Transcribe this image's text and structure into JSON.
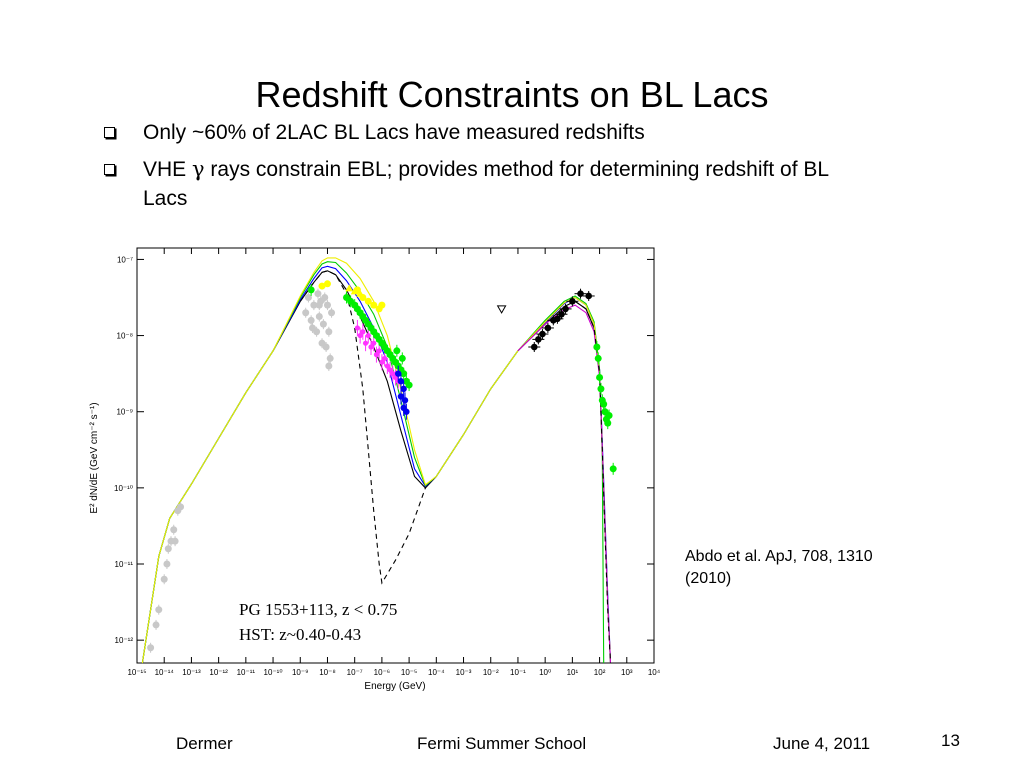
{
  "slide": {
    "title": "Redshift Constraints on BL Lacs",
    "bullets": [
      {
        "text": "Only ~60% of 2LAC BL Lacs have measured redshifts"
      },
      {
        "before": "VHE ",
        "symbol": "γ",
        "after": " rays constrain EBL; provides method for determining redshift of BL Lacs"
      }
    ],
    "caption_lines": [
      "Abdo et al. ApJ, 708, 1310",
      "(2010)"
    ],
    "footer": {
      "author": "Dermer",
      "event": "Fermi Summer School",
      "date": "June 4, 2011",
      "page": "13"
    }
  },
  "chart_data": {
    "type": "scatter",
    "xlabel": "Energy (GeV)",
    "ylabel": "E² dN/dE (GeV cm⁻² s⁻¹)",
    "x_log_range": [
      -15,
      4
    ],
    "y_log_range": [
      -12.3,
      -6.85
    ],
    "x_tick_labels": [
      "10⁻¹⁵",
      "10⁻¹⁴",
      "10⁻¹³",
      "10⁻¹²",
      "10⁻¹¹",
      "10⁻¹⁰",
      "10⁻⁹",
      "10⁻⁸",
      "10⁻⁷",
      "10⁻⁶",
      "10⁻⁵",
      "10⁻⁴",
      "10⁻³",
      "10⁻²",
      "10⁻¹",
      "10⁰",
      "10¹",
      "10²",
      "10³",
      "10⁴"
    ],
    "y_ticks": [
      {
        "exp": -7,
        "label": "10⁻⁷"
      },
      {
        "exp": -8,
        "label": "10⁻⁸"
      },
      {
        "exp": -9,
        "label": "10⁻⁹"
      },
      {
        "exp": -10,
        "label": "10⁻¹⁰"
      },
      {
        "exp": -11,
        "label": "10⁻¹¹"
      },
      {
        "exp": -12,
        "label": "10⁻¹²"
      }
    ],
    "annotation_lines": [
      "PG 1553+113, z < 0.75",
      "HST: z~0.40-0.43"
    ],
    "model_curves": [
      {
        "color": "#000000",
        "dash": false,
        "points": [
          [
            -14.8,
            -12.3
          ],
          [
            -14.2,
            -10.9
          ],
          [
            -13.8,
            -10.4
          ],
          [
            -13.0,
            -9.95
          ],
          [
            -12.0,
            -9.35
          ],
          [
            -11.0,
            -8.75
          ],
          [
            -10.0,
            -8.2
          ],
          [
            -9.0,
            -7.55
          ],
          [
            -8.5,
            -7.3
          ],
          [
            -8.2,
            -7.17
          ],
          [
            -8.0,
            -7.15
          ],
          [
            -7.7,
            -7.2
          ],
          [
            -7.3,
            -7.4
          ],
          [
            -6.8,
            -7.75
          ],
          [
            -6.3,
            -8.15
          ],
          [
            -5.8,
            -8.6
          ],
          [
            -5.3,
            -9.25
          ],
          [
            -4.8,
            -9.85
          ],
          [
            -4.4,
            -10.0
          ],
          [
            -4.0,
            -9.85
          ],
          [
            -3.0,
            -9.3
          ],
          [
            -2.0,
            -8.7
          ],
          [
            -1.0,
            -8.2
          ],
          [
            0.0,
            -7.85
          ],
          [
            0.7,
            -7.62
          ],
          [
            1.1,
            -7.55
          ],
          [
            1.5,
            -7.65
          ],
          [
            1.8,
            -7.9
          ],
          [
            2.0,
            -8.5
          ],
          [
            2.1,
            -9.5
          ],
          [
            2.2,
            -10.5
          ],
          [
            2.3,
            -11.5
          ],
          [
            2.4,
            -12.3
          ]
        ]
      },
      {
        "color": "#0000ff",
        "dash": false,
        "points": [
          [
            -14.8,
            -12.3
          ],
          [
            -14.2,
            -10.9
          ],
          [
            -13.8,
            -10.4
          ],
          [
            -13.0,
            -9.95
          ],
          [
            -12.0,
            -9.35
          ],
          [
            -11.0,
            -8.75
          ],
          [
            -10.0,
            -8.2
          ],
          [
            -9.0,
            -7.53
          ],
          [
            -8.5,
            -7.25
          ],
          [
            -8.2,
            -7.11
          ],
          [
            -8.0,
            -7.09
          ],
          [
            -7.7,
            -7.12
          ],
          [
            -7.3,
            -7.28
          ],
          [
            -6.8,
            -7.55
          ],
          [
            -6.3,
            -7.9
          ],
          [
            -5.8,
            -8.35
          ],
          [
            -5.3,
            -9.05
          ],
          [
            -4.8,
            -9.75
          ],
          [
            -4.4,
            -9.98
          ],
          [
            -4.0,
            -9.85
          ],
          [
            -3.0,
            -9.3
          ],
          [
            -2.0,
            -8.7
          ],
          [
            -1.0,
            -8.2
          ],
          [
            0.0,
            -7.83
          ],
          [
            0.7,
            -7.58
          ],
          [
            1.1,
            -7.5
          ],
          [
            1.5,
            -7.6
          ],
          [
            1.8,
            -7.85
          ],
          [
            2.0,
            -8.45
          ],
          [
            2.1,
            -9.4
          ],
          [
            2.2,
            -10.4
          ],
          [
            2.3,
            -11.4
          ],
          [
            2.4,
            -12.3
          ]
        ]
      },
      {
        "color": "#00cc00",
        "dash": false,
        "points": [
          [
            -14.8,
            -12.3
          ],
          [
            -14.2,
            -10.9
          ],
          [
            -13.8,
            -10.4
          ],
          [
            -13.0,
            -9.95
          ],
          [
            -12.0,
            -9.35
          ],
          [
            -11.0,
            -8.75
          ],
          [
            -10.0,
            -8.2
          ],
          [
            -9.0,
            -7.5
          ],
          [
            -8.5,
            -7.2
          ],
          [
            -8.2,
            -7.06
          ],
          [
            -8.0,
            -7.03
          ],
          [
            -7.7,
            -7.04
          ],
          [
            -7.3,
            -7.18
          ],
          [
            -6.8,
            -7.42
          ],
          [
            -6.3,
            -7.72
          ],
          [
            -5.8,
            -8.15
          ],
          [
            -5.3,
            -8.85
          ],
          [
            -4.8,
            -9.6
          ],
          [
            -4.4,
            -9.97
          ],
          [
            -4.0,
            -9.85
          ],
          [
            -3.0,
            -9.3
          ],
          [
            -2.0,
            -8.7
          ],
          [
            -1.0,
            -8.2
          ],
          [
            0.0,
            -7.8
          ],
          [
            0.7,
            -7.55
          ],
          [
            1.1,
            -7.48
          ],
          [
            1.5,
            -7.58
          ],
          [
            1.8,
            -7.82
          ],
          [
            2.0,
            -8.45
          ],
          [
            2.1,
            -9.6
          ],
          [
            2.15,
            -12.3
          ]
        ]
      },
      {
        "color": "#eeee00",
        "dash": false,
        "points": [
          [
            -14.8,
            -12.3
          ],
          [
            -14.2,
            -10.9
          ],
          [
            -13.8,
            -10.4
          ],
          [
            -13.0,
            -9.95
          ],
          [
            -12.0,
            -9.35
          ],
          [
            -11.0,
            -8.75
          ],
          [
            -10.0,
            -8.2
          ],
          [
            -9.0,
            -7.48
          ],
          [
            -8.5,
            -7.17
          ],
          [
            -8.2,
            -7.02
          ],
          [
            -8.0,
            -6.98
          ],
          [
            -7.7,
            -6.98
          ],
          [
            -7.3,
            -7.05
          ],
          [
            -6.8,
            -7.25
          ],
          [
            -6.3,
            -7.55
          ],
          [
            -5.8,
            -8.0
          ],
          [
            -5.3,
            -8.7
          ],
          [
            -4.8,
            -9.5
          ],
          [
            -4.4,
            -9.96
          ],
          [
            -4.0,
            -9.85
          ],
          [
            -3.0,
            -9.3
          ],
          [
            -2.0,
            -8.7
          ],
          [
            -1.0,
            -8.2
          ],
          [
            0.0,
            -7.82
          ],
          [
            0.7,
            -7.57
          ],
          [
            1.1,
            -7.5
          ],
          [
            1.5,
            -7.6
          ],
          [
            1.8,
            -7.85
          ],
          [
            2.0,
            -8.5
          ],
          [
            2.1,
            -9.5
          ],
          [
            2.2,
            -10.5
          ],
          [
            2.3,
            -11.5
          ],
          [
            2.4,
            -12.3
          ]
        ]
      },
      {
        "color": "#cc00cc",
        "dash": false,
        "points": [
          [
            -1.0,
            -8.2
          ],
          [
            0.0,
            -7.85
          ],
          [
            0.7,
            -7.66
          ],
          [
            1.1,
            -7.6
          ],
          [
            1.5,
            -7.7
          ],
          [
            1.8,
            -7.95
          ],
          [
            2.0,
            -8.55
          ],
          [
            2.1,
            -9.5
          ],
          [
            2.2,
            -10.5
          ],
          [
            2.3,
            -11.5
          ],
          [
            2.4,
            -12.3
          ]
        ]
      },
      {
        "color": "#000000",
        "dash": true,
        "points": [
          [
            -9.0,
            -7.55
          ],
          [
            -8.5,
            -7.3
          ],
          [
            -8.2,
            -7.17
          ],
          [
            -8.0,
            -7.15
          ],
          [
            -7.7,
            -7.2
          ],
          [
            -7.3,
            -7.45
          ],
          [
            -7.0,
            -7.9
          ],
          [
            -6.7,
            -8.7
          ],
          [
            -6.5,
            -9.5
          ],
          [
            -6.3,
            -10.3
          ],
          [
            -6.1,
            -11.0
          ],
          [
            -6.0,
            -11.25
          ],
          [
            -5.5,
            -10.95
          ],
          [
            -5.0,
            -10.6
          ],
          [
            -4.4,
            -10.0
          ]
        ]
      },
      {
        "color": "#000000",
        "dash": true,
        "points": [
          [
            1.1,
            -7.55
          ],
          [
            1.5,
            -7.65
          ],
          [
            1.8,
            -7.9
          ],
          [
            2.0,
            -8.5
          ],
          [
            2.1,
            -9.5
          ],
          [
            2.2,
            -10.6
          ],
          [
            2.3,
            -11.6
          ],
          [
            2.4,
            -12.3
          ]
        ]
      }
    ],
    "grey_points": [
      [
        -14.5,
        -12.1
      ],
      [
        -14.3,
        -11.8
      ],
      [
        -14.2,
        -11.6
      ],
      [
        -14.0,
        -11.2
      ],
      [
        -13.9,
        -11.0
      ],
      [
        -13.85,
        -10.8
      ],
      [
        -13.75,
        -10.7
      ],
      [
        -13.65,
        -10.55
      ],
      [
        -13.6,
        -10.7
      ],
      [
        -13.5,
        -10.3
      ],
      [
        -13.4,
        -10.25
      ],
      [
        -8.6,
        -7.8
      ],
      [
        -8.5,
        -7.6
      ],
      [
        -8.4,
        -7.95
      ],
      [
        -8.3,
        -7.75
      ],
      [
        -8.2,
        -8.1
      ],
      [
        -8.15,
        -7.85
      ],
      [
        -8.05,
        -8.15
      ],
      [
        -7.95,
        -7.95
      ],
      [
        -7.9,
        -8.3
      ],
      [
        -7.85,
        -7.7
      ],
      [
        -8.0,
        -7.6
      ],
      [
        -8.1,
        -7.5
      ],
      [
        -8.25,
        -7.55
      ],
      [
        -8.35,
        -7.45
      ],
      [
        -8.7,
        -7.5
      ],
      [
        -8.8,
        -7.7
      ],
      [
        -8.3,
        -7.6
      ],
      [
        -8.55,
        -7.9
      ],
      [
        -7.95,
        -8.4
      ]
    ],
    "yellow_points": [
      [
        -8.2,
        -7.35
      ],
      [
        -8.0,
        -7.32
      ],
      [
        -6.9,
        -7.4
      ],
      [
        -6.7,
        -7.5
      ],
      [
        -6.5,
        -7.55
      ],
      [
        -6.3,
        -7.6
      ],
      [
        -6.1,
        -7.65
      ],
      [
        -6.0,
        -7.6
      ]
    ],
    "yellow_triangles": [
      [
        -7.2,
        -7.38
      ],
      [
        -7.0,
        -7.42
      ],
      [
        -6.8,
        -7.45
      ]
    ],
    "green_points": [
      [
        -8.6,
        -7.4
      ],
      [
        -7.3,
        -7.5
      ],
      [
        -7.15,
        -7.55
      ],
      [
        -7.0,
        -7.6
      ],
      [
        -6.9,
        -7.65
      ],
      [
        -6.8,
        -7.7
      ],
      [
        -6.7,
        -7.75
      ],
      [
        -6.6,
        -7.8
      ],
      [
        -6.5,
        -7.85
      ],
      [
        -6.4,
        -7.9
      ],
      [
        -6.3,
        -7.95
      ],
      [
        -6.2,
        -8.0
      ],
      [
        -6.1,
        -8.05
      ],
      [
        -6.0,
        -8.1
      ],
      [
        -5.9,
        -8.15
      ],
      [
        -5.8,
        -8.2
      ],
      [
        -5.7,
        -8.25
      ],
      [
        -5.6,
        -8.3
      ],
      [
        -5.5,
        -8.35
      ],
      [
        -5.4,
        -8.4
      ],
      [
        -5.3,
        -8.45
      ],
      [
        -5.2,
        -8.5
      ],
      [
        -5.1,
        -8.6
      ],
      [
        -5.0,
        -8.65
      ],
      [
        -5.25,
        -8.3
      ],
      [
        -5.45,
        -8.2
      ],
      [
        1.9,
        -8.15
      ],
      [
        1.95,
        -8.3
      ],
      [
        2.0,
        -8.55
      ],
      [
        2.05,
        -8.7
      ],
      [
        2.1,
        -8.85
      ],
      [
        2.15,
        -8.9
      ],
      [
        2.2,
        -9.0
      ],
      [
        2.25,
        -9.1
      ],
      [
        2.3,
        -9.15
      ],
      [
        2.35,
        -9.05
      ],
      [
        2.5,
        -9.75
      ]
    ],
    "magenta_points": [
      [
        -6.9,
        -7.9
      ],
      [
        -6.8,
        -8.0
      ],
      [
        -6.7,
        -7.95
      ],
      [
        -6.6,
        -8.1
      ],
      [
        -6.5,
        -8.0
      ],
      [
        -6.4,
        -8.15
      ],
      [
        -6.3,
        -8.1
      ],
      [
        -6.2,
        -8.25
      ],
      [
        -6.1,
        -8.2
      ],
      [
        -6.0,
        -8.35
      ],
      [
        -5.9,
        -8.3
      ],
      [
        -5.8,
        -8.4
      ],
      [
        -5.7,
        -8.45
      ],
      [
        -5.6,
        -8.5
      ],
      [
        -5.5,
        -8.55
      ],
      [
        -5.4,
        -8.6
      ]
    ],
    "blue_points": [
      [
        -5.4,
        -8.5
      ],
      [
        -5.3,
        -8.6
      ],
      [
        -5.2,
        -8.7
      ],
      [
        -5.15,
        -8.85
      ],
      [
        -5.1,
        -9.0
      ],
      [
        -5.2,
        -8.95
      ],
      [
        -5.3,
        -8.8
      ]
    ],
    "black_points": [
      [
        -0.4,
        -8.15
      ],
      [
        -0.25,
        -8.05
      ],
      [
        -0.1,
        -7.98
      ],
      [
        0.1,
        -7.9
      ],
      [
        0.3,
        -7.8
      ],
      [
        0.45,
        -7.78
      ],
      [
        0.6,
        -7.72
      ],
      [
        0.75,
        -7.65
      ],
      [
        1.0,
        -7.55
      ],
      [
        1.3,
        -7.45
      ],
      [
        1.6,
        -7.48
      ]
    ],
    "upper_limits": [
      [
        -1.6,
        -7.65
      ]
    ]
  }
}
